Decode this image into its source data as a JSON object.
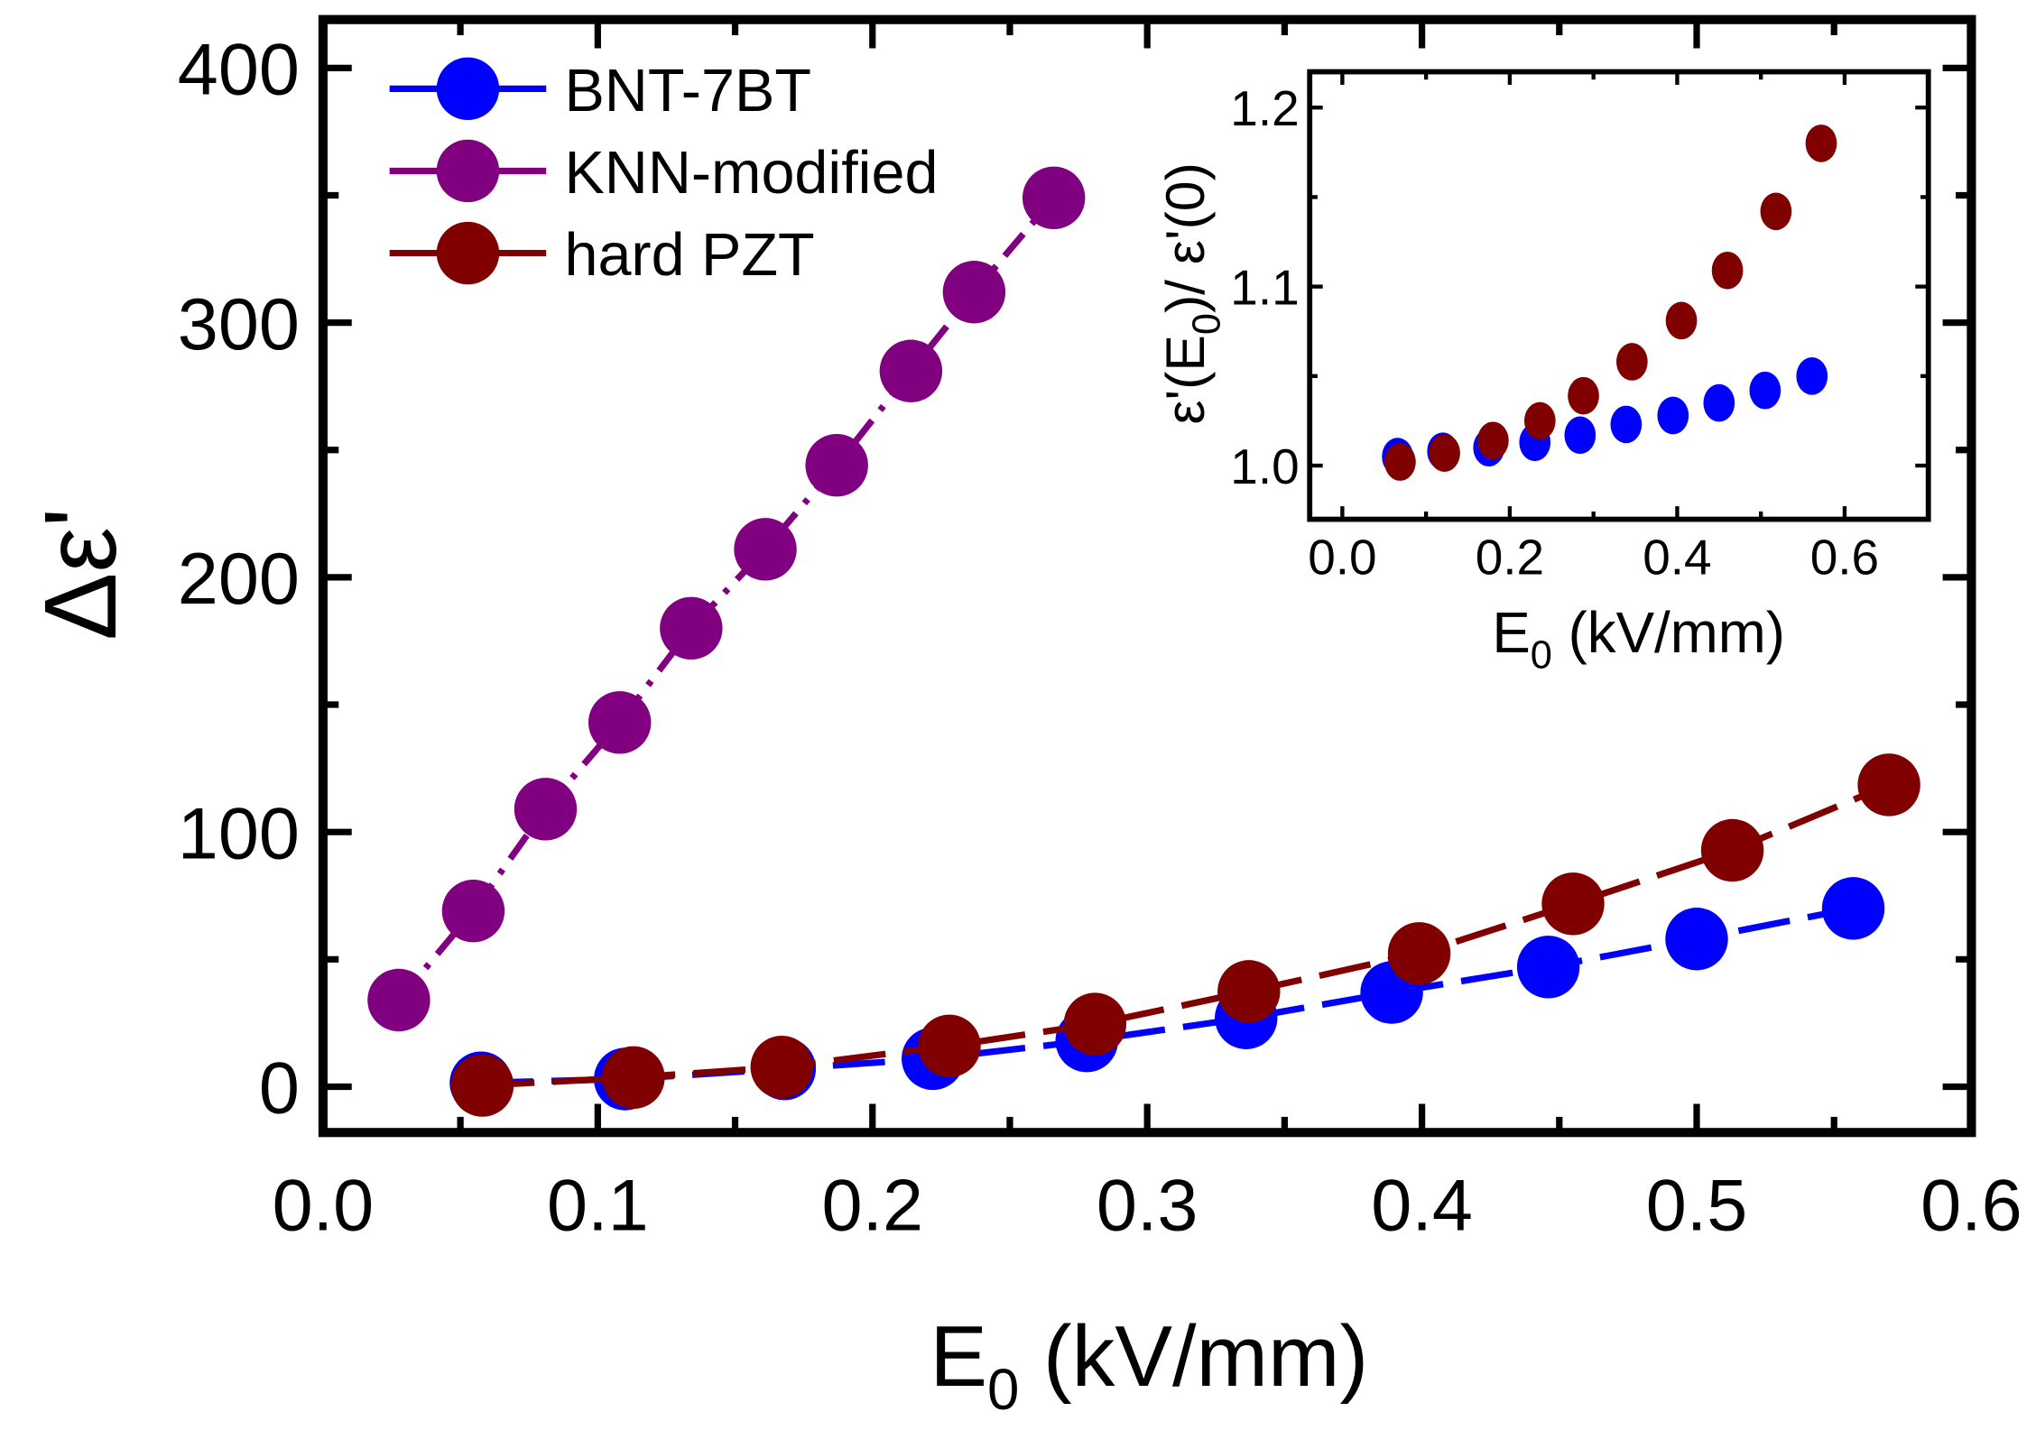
{
  "chart_data": [
    {
      "type": "line",
      "title": "",
      "xlabel": "E0 (kV/mm)",
      "xlabel_main": "E",
      "xlabel_sub": "0",
      "xlabel_rest": " (kV/mm)",
      "ylabel": "Δε'",
      "xlim": [
        0,
        0.6
      ],
      "ylim": [
        -18,
        419
      ],
      "xticks": [
        "0.0",
        "0.1",
        "0.2",
        "0.3",
        "0.4",
        "0.5",
        "0.6"
      ],
      "xtick_values": [
        0,
        0.1,
        0.2,
        0.3,
        0.4,
        0.5,
        0.6
      ],
      "yticks": [
        "0",
        "100",
        "200",
        "300",
        "400"
      ],
      "ytick_values": [
        0,
        100,
        200,
        300,
        400
      ],
      "legend_position": "top-left",
      "series": [
        {
          "name": "BNT-7BT",
          "color": "#0000ff",
          "dash": "long",
          "x": [
            0.0575,
            0.11,
            0.168,
            0.222,
            0.278,
            0.336,
            0.389,
            0.446,
            0.5,
            0.557
          ],
          "y": [
            1.5,
            3,
            7,
            11,
            18,
            27,
            37,
            47,
            58,
            70
          ]
        },
        {
          "name": "KNN-modified",
          "color": "#800080",
          "dash": "dashdot",
          "x": [
            0.0276,
            0.0547,
            0.081,
            0.108,
            0.134,
            0.161,
            0.187,
            0.214,
            0.237,
            0.266
          ],
          "y": [
            34,
            69,
            109,
            143,
            180,
            211,
            244,
            281,
            312,
            349
          ]
        },
        {
          "name": "hard PZT",
          "color": "#800000",
          "dash": "long",
          "x": [
            0.058,
            0.113,
            0.167,
            0.228,
            0.281,
            0.337,
            0.399,
            0.455,
            0.513,
            0.57
          ],
          "y": [
            0.5,
            3.6,
            7.7,
            16,
            24.6,
            37.4,
            52.3,
            71.8,
            92.8,
            118.5
          ]
        }
      ]
    },
    {
      "type": "scatter",
      "title": "",
      "xlabel": "E0 (kV/mm)",
      "xlabel_main": "E",
      "xlabel_sub": "0",
      "xlabel_rest": " (kV/mm)",
      "ylabel": "ε'(E0)/ ε'(0)",
      "ylabel_a": "ε'(E",
      "ylabel_sub": "0",
      "ylabel_b": ")/ ε'(0)",
      "xlim": [
        -0.039,
        0.7
      ],
      "ylim": [
        0.97,
        1.22
      ],
      "xticks": [
        "0.0",
        "0.2",
        "0.4",
        "0.6"
      ],
      "xtick_values": [
        0,
        0.2,
        0.4,
        0.6
      ],
      "yticks": [
        "1.0",
        "1.1",
        "1.2"
      ],
      "ytick_values": [
        1.0,
        1.1,
        1.2
      ],
      "series": [
        {
          "name": "BNT-7BT",
          "color": "#0000ff",
          "x": [
            0.066,
            0.12,
            0.175,
            0.23,
            0.284,
            0.339,
            0.395,
            0.45,
            0.505,
            0.561
          ],
          "y": [
            1.005,
            1.008,
            1.01,
            1.013,
            1.017,
            1.023,
            1.028,
            1.035,
            1.042,
            1.05
          ]
        },
        {
          "name": "hard PZT",
          "color": "#800000",
          "x": [
            0.069,
            0.122,
            0.18,
            0.236,
            0.288,
            0.346,
            0.405,
            0.46,
            0.518,
            0.572
          ],
          "y": [
            1.002,
            1.007,
            1.014,
            1.025,
            1.039,
            1.058,
            1.081,
            1.109,
            1.142,
            1.18
          ]
        }
      ]
    }
  ]
}
